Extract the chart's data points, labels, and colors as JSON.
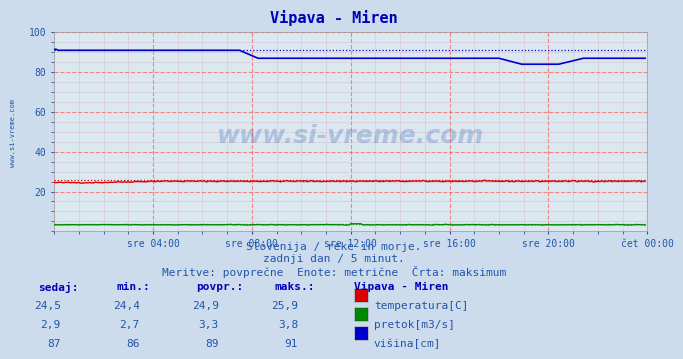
{
  "title": "Vipava - Miren",
  "bg_color": "#ccdcec",
  "plot_bg_color": "#dce8f0",
  "grid_color_major": "#ff8888",
  "grid_color_minor": "#ccbbcc",
  "xlabel_ticks": [
    "sre 04:00",
    "sre 08:00",
    "sre 12:00",
    "sre 16:00",
    "sre 20:00",
    "čet 00:00"
  ],
  "ylim": [
    0,
    100
  ],
  "xlim": [
    0,
    287
  ],
  "watermark": "www.si-vreme.com",
  "watermark_color": "#2255aa",
  "side_label": "www.si-vreme.com",
  "subtitle1": "Slovenija / reke in morje.",
  "subtitle2": "zadnji dan / 5 minut.",
  "subtitle3": "Meritve: povprečne  Enote: metrične  Črta: maksimum",
  "table_station": "Vipava - Miren",
  "table_data": [
    {
      "sedaj": "24,5",
      "min": "24,4",
      "povpr": "24,9",
      "maks": "25,9",
      "label": "temperatura[C]",
      "color": "#dd0000"
    },
    {
      "sedaj": "2,9",
      "min": "2,7",
      "povpr": "3,3",
      "maks": "3,8",
      "label": "pretok[m3/s]",
      "color": "#008800"
    },
    {
      "sedaj": "87",
      "min": "86",
      "povpr": "89",
      "maks": "91",
      "label": "višina[cm]",
      "color": "#0000cc"
    }
  ],
  "temp_line_color": "#dd0000",
  "temp_max_color": "#dd0000",
  "pretok_line_color": "#008800",
  "pretok_max_color": "#008800",
  "visina_line_color": "#0000cc",
  "visina_max_color": "#0000cc",
  "title_color": "#0000bb",
  "text_color": "#2255aa",
  "tick_color": "#2255aa",
  "tick_fontsize": 7,
  "title_fontsize": 11,
  "subtitle_fontsize": 8,
  "table_fontsize": 8
}
